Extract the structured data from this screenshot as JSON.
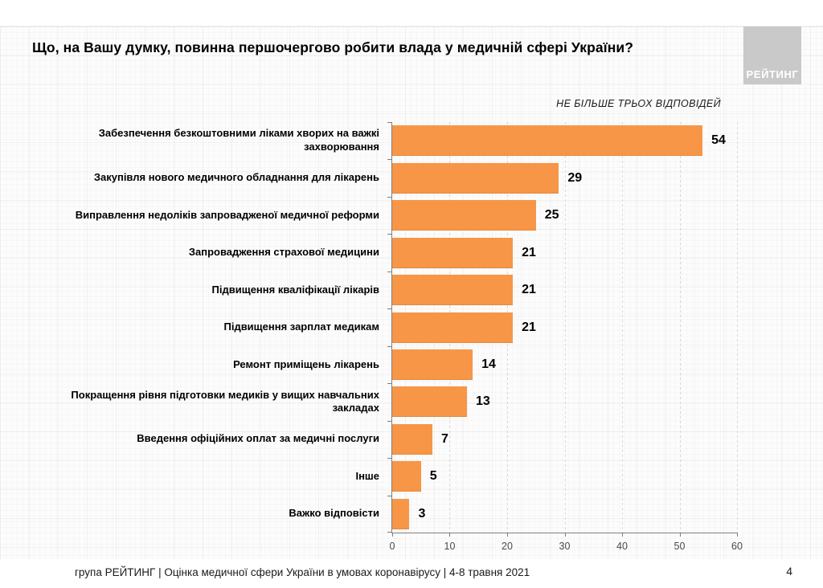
{
  "slide": {
    "title": "Що, на Вашу думку, повинна першочергово робити влада у медичній сфері України?",
    "note": "НЕ БІЛЬШЕ ТРЬОХ ВІДПОВІДЕЙ",
    "logo_text": "РЕЙТИНГ",
    "footer_text": "група РЕЙТИНГ  |  Оцінка медичної сфери України в умовах коронавірусу  | 4-8 травня 2021",
    "page_number": "4"
  },
  "chart_data": {
    "type": "bar",
    "orientation": "horizontal",
    "title": "Що, на Вашу думку, повинна першочергово робити влада у медичній сфері України?",
    "subtitle": "НЕ БІЛЬШЕ ТРЬОХ ВІДПОВІДЕЙ",
    "categories": [
      "Забезпечення безкоштовними ліками хворих на важкі захворювання",
      "Закупівля нового медичного обладнання для лікарень",
      "Виправлення недоліків запровадженої медичної реформи",
      "Запровадження страхової медицини",
      "Підвищення кваліфікації лікарів",
      "Підвищення зарплат медикам",
      "Ремонт приміщень лікарень",
      "Покращення рівня підготовки медиків у вищих навчальних закладах",
      "Введення офіційних оплат за медичні послуги",
      "Інше",
      "Важко відповісти"
    ],
    "values": [
      54,
      29,
      25,
      21,
      21,
      21,
      14,
      13,
      7,
      5,
      3
    ],
    "value_labels_shown": true,
    "xlabel": "",
    "ylabel": "",
    "xlim": [
      0,
      60
    ],
    "x_ticks": [
      0,
      10,
      20,
      30,
      40,
      50,
      60
    ],
    "bar_color": "#F79646",
    "grid": true,
    "legend": false
  }
}
